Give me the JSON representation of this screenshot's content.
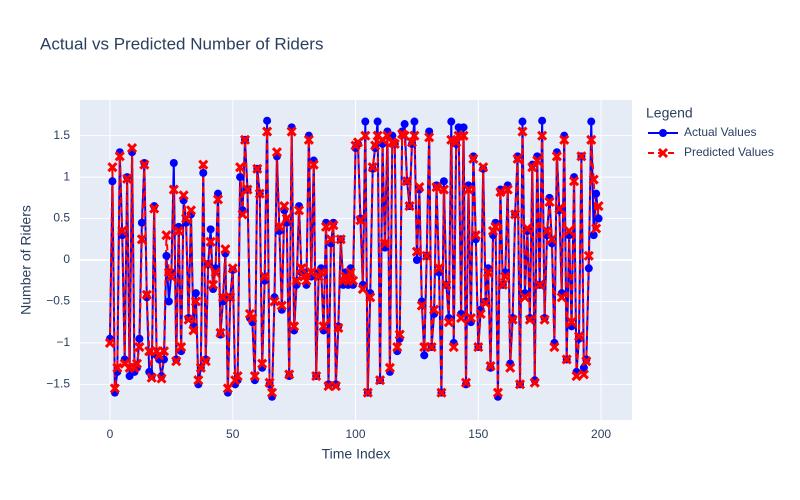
{
  "chart_data": {
    "type": "line",
    "title": "Actual vs Predicted Number of Riders",
    "x_label": "Time Index",
    "y_label": "Number of Riders",
    "legend_title": "Legend",
    "legend_position": "right",
    "grid": true,
    "xlim": [
      -12.2,
      212.6
    ],
    "xticks": [
      0,
      50,
      100,
      150,
      200
    ],
    "ylim": [
      -1.93,
      1.93
    ],
    "yticks": [
      {
        "value": -1.5,
        "label": "−1.5"
      },
      {
        "value": -1,
        "label": "−1"
      },
      {
        "value": -0.5,
        "label": "−0.5"
      },
      0,
      0.5,
      1,
      1.5
    ],
    "x": [
      0,
      1,
      2,
      3,
      4,
      5,
      6,
      7,
      8,
      9,
      10,
      11,
      12,
      13,
      14,
      15,
      16,
      17,
      18,
      19,
      20,
      21,
      22,
      23,
      24,
      25,
      26,
      27,
      28,
      29,
      30,
      31,
      32,
      33,
      34,
      35,
      36,
      37,
      38,
      39,
      40,
      41,
      42,
      43,
      44,
      45,
      46,
      47,
      48,
      49,
      50,
      51,
      52,
      53,
      54,
      55,
      56,
      57,
      58,
      59,
      60,
      61,
      62,
      63,
      64,
      65,
      66,
      67,
      68,
      69,
      70,
      71,
      72,
      73,
      74,
      75,
      76,
      77,
      78,
      79,
      80,
      81,
      82,
      83,
      84,
      85,
      86,
      87,
      88,
      89,
      90,
      91,
      92,
      93,
      94,
      95,
      96,
      97,
      98,
      99,
      100,
      101,
      102,
      103,
      104,
      105,
      106,
      107,
      108,
      109,
      110,
      111,
      112,
      113,
      114,
      115,
      116,
      117,
      118,
      119,
      120,
      121,
      122,
      123,
      124,
      125,
      126,
      127,
      128,
      129,
      130,
      131,
      132,
      133,
      134,
      135,
      136,
      137,
      138,
      139,
      140,
      141,
      142,
      143,
      144,
      145,
      146,
      147,
      148,
      149,
      150,
      151,
      152,
      153,
      154,
      155,
      156,
      157,
      158,
      159,
      160,
      161,
      162,
      163,
      164,
      165,
      166,
      167,
      168,
      169,
      170,
      171,
      172,
      173,
      174,
      175,
      176,
      177,
      178,
      179,
      180,
      181,
      182,
      183,
      184,
      185,
      186,
      187,
      188,
      189,
      190,
      191,
      192,
      193,
      194,
      195,
      196,
      197,
      198,
      199
    ],
    "series": [
      {
        "name": "Actual Values",
        "color": "#0000ff",
        "dash": "solid",
        "marker": "circle",
        "values": [
          -0.95,
          0.95,
          -1.6,
          -1.35,
          1.3,
          0.3,
          -1.2,
          1.0,
          -1.4,
          1.3,
          -1.35,
          -1.3,
          -0.95,
          0.45,
          1.17,
          -0.45,
          -1.35,
          -1.4,
          0.65,
          -1.15,
          -1.2,
          -1.4,
          -1.2,
          0.05,
          -0.5,
          -0.15,
          1.17,
          -1.2,
          0.4,
          -1.1,
          0.72,
          0.45,
          -0.7,
          0.55,
          -0.8,
          -0.4,
          -1.5,
          -1.3,
          1.05,
          -1.2,
          -0.05,
          0.37,
          -0.35,
          -0.1,
          0.8,
          -0.9,
          -0.5,
          0.08,
          -1.6,
          -0.45,
          -0.12,
          -1.5,
          -1.45,
          1.0,
          0.6,
          1.45,
          0.85,
          -0.7,
          -0.75,
          -1.45,
          1.1,
          0.8,
          -1.3,
          -0.25,
          1.68,
          -1.5,
          -1.65,
          -0.45,
          1.25,
          0.35,
          -0.6,
          0.6,
          0.45,
          -1.4,
          1.6,
          -0.85,
          -0.3,
          0.65,
          -0.15,
          -0.15,
          -0.3,
          1.5,
          -0.2,
          1.2,
          -1.4,
          -0.15,
          -0.1,
          -0.85,
          0.45,
          -1.5,
          0.2,
          0.45,
          -1.5,
          -0.8,
          0.25,
          -0.3,
          -0.15,
          -0.3,
          -0.1,
          -0.3,
          1.35,
          1.4,
          0.5,
          -0.3,
          1.67,
          -1.6,
          -0.4,
          1.1,
          1.35,
          1.67,
          -1.45,
          1.4,
          0.15,
          1.55,
          -1.35,
          1.5,
          1.4,
          -1.1,
          -0.95,
          1.55,
          1.64,
          0.95,
          0.65,
          1.4,
          1.67,
          0.0,
          0.85,
          -0.5,
          -1.15,
          0.05,
          1.55,
          -1.05,
          -0.65,
          0.9,
          -0.15,
          -1.6,
          0.95,
          -0.3,
          -0.7,
          1.67,
          -1.0,
          1.4,
          1.6,
          -0.65,
          1.6,
          -1.5,
          0.9,
          -0.75,
          1.25,
          0.25,
          -1.05,
          -0.6,
          1.1,
          -0.5,
          -0.1,
          -1.3,
          0.3,
          0.45,
          -1.65,
          0.85,
          -0.3,
          -0.15,
          0.9,
          -1.25,
          -0.7,
          0.55,
          1.25,
          -1.5,
          1.67,
          -0.4,
          0.35,
          -0.7,
          1.15,
          -1.45,
          1.25,
          -0.3,
          1.68,
          -0.7,
          0.3,
          0.75,
          0.2,
          -1.0,
          1.3,
          0.6,
          -0.4,
          1.5,
          -1.2,
          0.3,
          -0.8,
          1.0,
          -1.35,
          -0.95,
          1.25,
          -1.3,
          -1.2,
          -0.1,
          1.67,
          0.3,
          0.8,
          0.5
        ]
      },
      {
        "name": "Predicted Values",
        "color": "#ff0000",
        "dash": "dash",
        "marker": "x",
        "values": [
          -1.0,
          1.12,
          -1.55,
          -1.3,
          1.25,
          0.35,
          -1.25,
          0.98,
          -1.3,
          1.35,
          -1.3,
          -1.25,
          -1.05,
          0.25,
          1.15,
          -0.42,
          -1.1,
          -1.42,
          0.62,
          -1.1,
          -1.15,
          -1.43,
          -1.1,
          0.3,
          -0.15,
          -0.2,
          0.85,
          -1.22,
          0.35,
          -1.05,
          0.78,
          0.5,
          -0.72,
          0.6,
          -0.85,
          -0.5,
          -1.45,
          -1.3,
          1.15,
          -1.22,
          -0.05,
          0.22,
          -0.3,
          -0.15,
          0.73,
          -0.88,
          -0.45,
          0.13,
          -1.55,
          -0.45,
          -0.1,
          -1.45,
          -1.4,
          1.12,
          0.55,
          1.45,
          0.85,
          -0.65,
          -0.7,
          -1.4,
          1.1,
          0.8,
          -1.25,
          -0.2,
          1.55,
          -1.48,
          -1.6,
          -0.5,
          1.3,
          0.4,
          -0.55,
          0.65,
          0.5,
          -1.38,
          1.55,
          -0.8,
          -0.25,
          0.6,
          -0.1,
          -0.2,
          -0.25,
          1.45,
          -0.15,
          1.15,
          -1.4,
          -0.2,
          -0.15,
          -0.8,
          0.4,
          -1.52,
          0.25,
          0.42,
          -1.52,
          -0.82,
          0.25,
          -0.25,
          -0.2,
          -0.25,
          -0.15,
          -0.25,
          1.38,
          1.42,
          0.48,
          -0.35,
          1.5,
          -1.6,
          -0.45,
          1.12,
          1.38,
          1.5,
          -1.45,
          1.45,
          0.2,
          1.5,
          -1.3,
          1.42,
          1.4,
          -1.05,
          -0.9,
          1.52,
          1.5,
          0.95,
          0.65,
          1.42,
          1.5,
          0.1,
          0.88,
          -0.55,
          -1.05,
          0.05,
          1.48,
          -1.05,
          -0.6,
          0.88,
          -0.1,
          -1.6,
          0.85,
          -0.3,
          -0.75,
          1.45,
          -1.05,
          1.42,
          1.5,
          -0.7,
          1.5,
          -1.48,
          0.85,
          -0.7,
          1.22,
          0.3,
          -1.05,
          -0.65,
          1.12,
          -0.52,
          -0.15,
          -1.28,
          0.35,
          0.4,
          -1.6,
          0.82,
          -0.3,
          -0.2,
          0.85,
          -1.3,
          -0.72,
          0.55,
          1.22,
          -1.5,
          1.55,
          -0.45,
          0.38,
          -0.72,
          1.12,
          -1.48,
          1.2,
          -0.3,
          1.5,
          -0.72,
          0.35,
          0.7,
          0.25,
          -1.05,
          1.25,
          0.62,
          -0.45,
          1.45,
          -1.2,
          0.35,
          -0.75,
          0.95,
          -1.4,
          -0.92,
          1.25,
          -1.38,
          -1.22,
          0.05,
          1.45,
          0.97,
          0.38,
          0.65
        ]
      }
    ]
  }
}
